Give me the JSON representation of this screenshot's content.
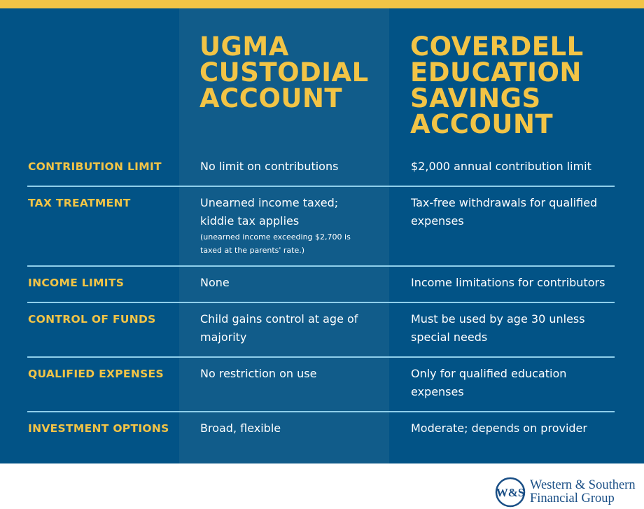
{
  "header": {
    "col1": [
      "UGMA",
      "CUSTODIAL",
      "ACCOUNT"
    ],
    "col2": [
      "COVERDELL",
      "EDUCATION",
      "SAVINGS",
      "ACCOUNT"
    ]
  },
  "rows": [
    {
      "label": "CONTRIBUTION LIMIT",
      "ugma": "No limit on contributions",
      "coverdell": "$2,000 annual contribution limit"
    },
    {
      "label": "TAX TREATMENT",
      "ugma": "Unearned income taxed; kiddie tax applies",
      "ugma_note": "(unearned income exceeding $2,700 is taxed at the parents' rate.)",
      "coverdell": "Tax-free withdrawals for qualified expenses"
    },
    {
      "label": "INCOME LIMITS",
      "ugma": "None",
      "coverdell": "Income limitations for contributors"
    },
    {
      "label": "CONTROL OF FUNDS",
      "ugma": "Child gains control at age of majority",
      "coverdell": "Must be used by age 30 unless special needs"
    },
    {
      "label": "QUALIFIED EXPENSES",
      "ugma": "No restriction on use",
      "coverdell": "Only for qualified education expenses"
    },
    {
      "label": "INVESTMENT OPTIONS",
      "ugma": "Broad, flexible",
      "coverdell": "Moderate; depends on provider"
    }
  ],
  "logo": {
    "mark": "W&S",
    "line1": "Western & Southern",
    "line2": "Financial Group"
  },
  "colors": {
    "accent": "#f2c446",
    "background": "#025386",
    "column": "#115c8a",
    "divider": "#8fcfeb"
  }
}
